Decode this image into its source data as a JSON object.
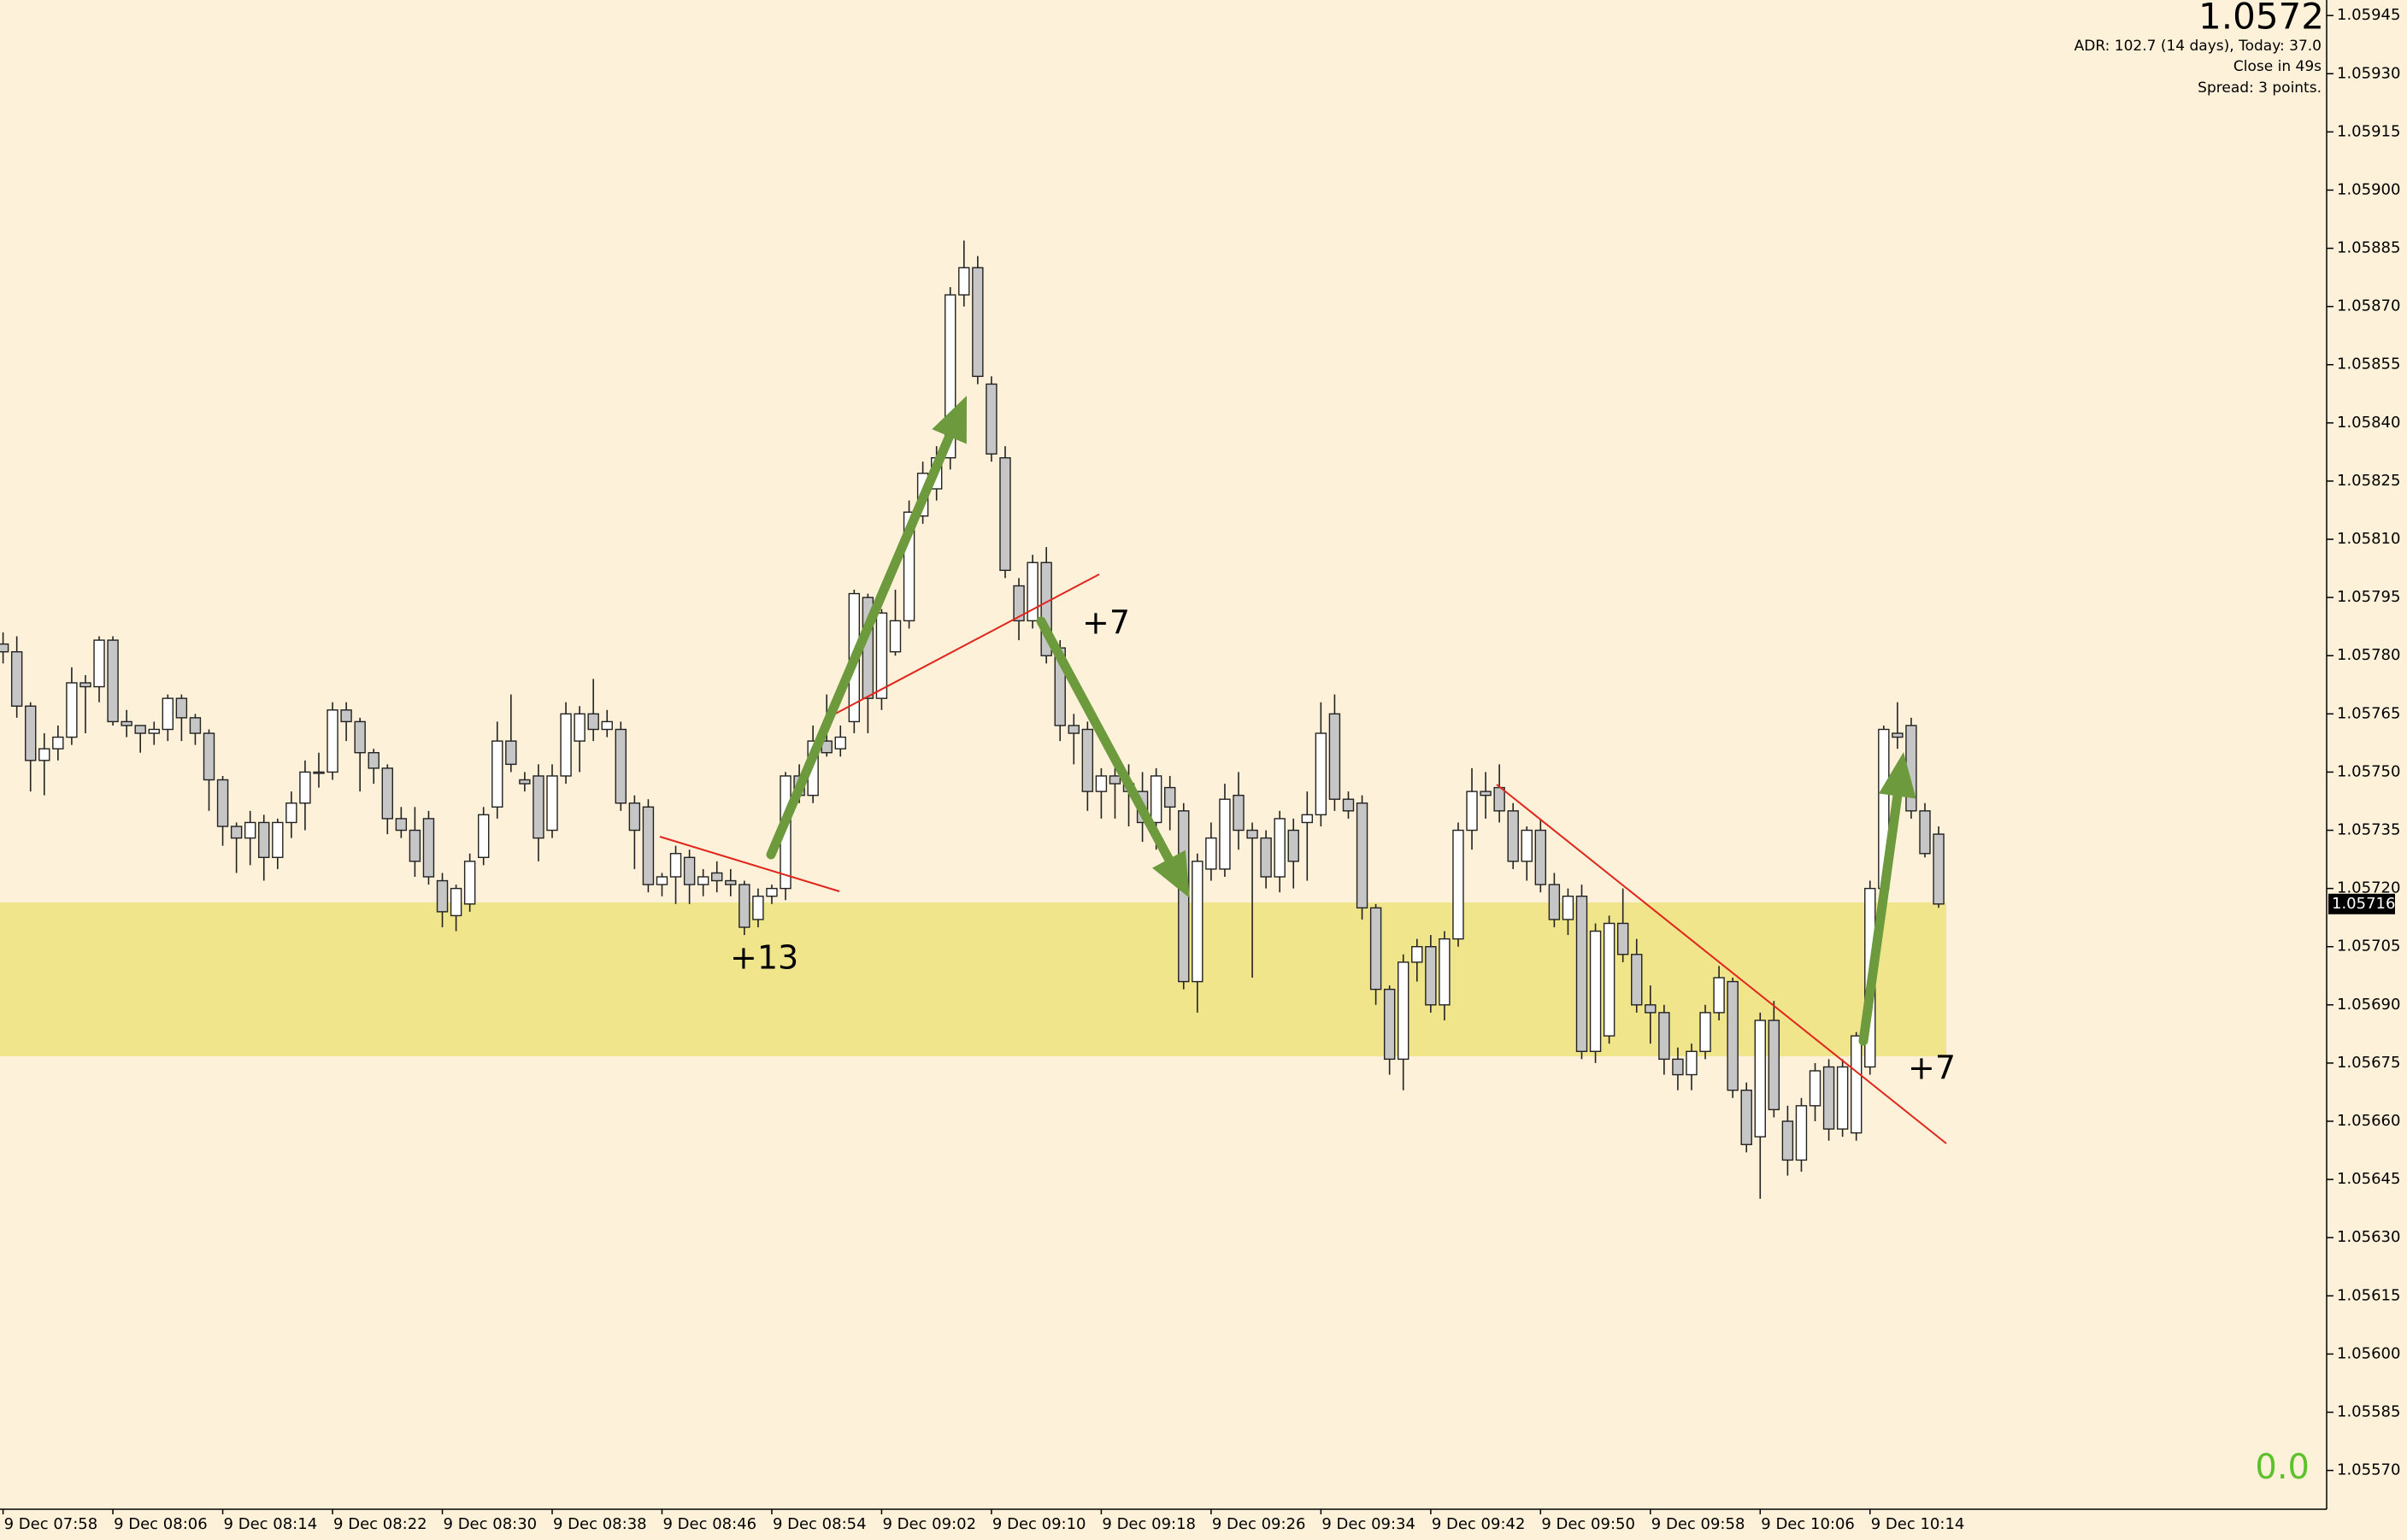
{
  "chart_data": {
    "type": "candlestick",
    "categories": [
      "9 Dec 07:58",
      null,
      null,
      null,
      null,
      null,
      null,
      null,
      "9 Dec 08:06",
      null,
      null,
      null,
      null,
      null,
      null,
      null,
      "9 Dec 08:14",
      null,
      null,
      null,
      null,
      null,
      null,
      null,
      "9 Dec 08:22",
      null,
      null,
      null,
      null,
      null,
      null,
      null,
      "9 Dec 08:30",
      null,
      null,
      null,
      null,
      null,
      null,
      null,
      "9 Dec 08:38",
      null,
      null,
      null,
      null,
      null,
      null,
      null,
      "9 Dec 08:46",
      null,
      null,
      null,
      null,
      null,
      null,
      null,
      "9 Dec 08:54",
      null,
      null,
      null,
      null,
      null,
      null,
      null,
      "9 Dec 09:02",
      null,
      null,
      null,
      null,
      null,
      null,
      null,
      "9 Dec 09:10",
      null,
      null,
      null,
      null,
      null,
      null,
      null,
      "9 Dec 09:18",
      null,
      null,
      null,
      null,
      null,
      null,
      null,
      "9 Dec 09:26",
      null,
      null,
      null,
      null,
      null,
      null,
      null,
      "9 Dec 09:34",
      null,
      null,
      null,
      null,
      null,
      null,
      null,
      "9 Dec 09:42",
      null,
      null,
      null,
      null,
      null,
      null,
      null,
      "9 Dec 09:50",
      null,
      null,
      null,
      null,
      null,
      null,
      null,
      "9 Dec 09:58",
      null,
      null,
      null,
      null,
      null,
      null,
      null,
      "9 Dec 10:06",
      null,
      null,
      null,
      null,
      null,
      null,
      null,
      "9 Dec 10:14",
      null,
      null,
      null,
      null,
      null
    ],
    "open": [
      1.05783,
      1.05781,
      1.05767,
      1.05753,
      1.05756,
      1.05759,
      1.05773,
      1.05772,
      1.05784,
      1.05763,
      1.05762,
      1.0576,
      1.05761,
      1.05769,
      1.05764,
      1.0576,
      1.05748,
      1.05736,
      1.05733,
      1.05737,
      1.05728,
      1.05737,
      1.05742,
      1.0575,
      1.0575,
      1.05766,
      1.05763,
      1.05755,
      1.05751,
      1.05738,
      1.05735,
      1.05738,
      1.05722,
      1.05713,
      1.05716,
      1.05728,
      1.05741,
      1.05758,
      1.05748,
      1.05749,
      1.05735,
      1.05749,
      1.05758,
      1.05765,
      1.05761,
      1.05761,
      1.05742,
      1.05741,
      1.05721,
      1.05723,
      1.05728,
      1.05721,
      1.05724,
      1.05722,
      1.05721,
      1.05712,
      1.05718,
      1.0572,
      1.05749,
      1.05744,
      1.05758,
      1.05756,
      1.05763,
      1.05795,
      1.05769,
      1.05781,
      1.05789,
      1.05816,
      1.05823,
      1.05831,
      1.05873,
      1.0588,
      1.0585,
      1.05831,
      1.05798,
      1.05789,
      1.05804,
      1.05782,
      1.05762,
      1.05761,
      1.05745,
      1.05749,
      1.05747,
      1.05745,
      1.05737,
      1.05746,
      1.0574,
      1.05696,
      1.05725,
      1.05725,
      1.05744,
      1.05735,
      1.05733,
      1.05723,
      1.05735,
      1.05737,
      1.05739,
      1.05765,
      1.05743,
      1.05742,
      1.05715,
      1.05694,
      1.05676,
      1.05701,
      1.05705,
      1.0569,
      1.05707,
      1.05735,
      1.05745,
      1.05746,
      1.0574,
      1.05727,
      1.05735,
      1.05721,
      1.05712,
      1.05718,
      1.05678,
      1.05682,
      1.05711,
      1.05703,
      1.0569,
      1.05688,
      1.05676,
      1.05672,
      1.05678,
      1.05688,
      1.05696,
      1.05668,
      1.05656,
      1.05686,
      1.0566,
      1.0565,
      1.05664,
      1.05674,
      1.05658,
      1.05657,
      1.05674,
      1.0572,
      1.0576,
      1.05762,
      1.0574,
      1.05734
    ],
    "high": [
      1.05786,
      1.05785,
      1.05768,
      1.0576,
      1.05762,
      1.05777,
      1.05775,
      1.05785,
      1.05785,
      1.05766,
      1.05762,
      1.05763,
      1.0577,
      1.0577,
      1.05765,
      1.05761,
      1.05749,
      1.05737,
      1.0574,
      1.05739,
      1.05738,
      1.05745,
      1.05753,
      1.05755,
      1.05768,
      1.05768,
      1.05764,
      1.05756,
      1.05752,
      1.05741,
      1.05741,
      1.0574,
      1.05724,
      1.05721,
      1.05729,
      1.05741,
      1.05763,
      1.0577,
      1.0575,
      1.05752,
      1.05752,
      1.05768,
      1.05767,
      1.05774,
      1.05766,
      1.05763,
      1.05744,
      1.05743,
      1.05724,
      1.05731,
      1.0573,
      1.05725,
      1.05727,
      1.05725,
      1.05722,
      1.0572,
      1.05721,
      1.0575,
      1.05752,
      1.05762,
      1.0577,
      1.05762,
      1.05797,
      1.05796,
      1.05792,
      1.05797,
      1.0582,
      1.0583,
      1.05834,
      1.05875,
      1.05887,
      1.05883,
      1.05852,
      1.05834,
      1.058,
      1.05806,
      1.05808,
      1.05784,
      1.05765,
      1.05763,
      1.05751,
      1.05752,
      1.05752,
      1.0575,
      1.05751,
      1.05749,
      1.05742,
      1.05729,
      1.05737,
      1.05747,
      1.0575,
      1.05737,
      1.05735,
      1.0574,
      1.05738,
      1.05745,
      1.05768,
      1.0577,
      1.05745,
      1.05744,
      1.05716,
      1.05695,
      1.05703,
      1.05707,
      1.05708,
      1.05709,
      1.05737,
      1.05751,
      1.0575,
      1.05752,
      1.05742,
      1.05736,
      1.05738,
      1.05724,
      1.0572,
      1.05721,
      1.05711,
      1.05713,
      1.0572,
      1.05707,
      1.05695,
      1.0569,
      1.05679,
      1.0568,
      1.0569,
      1.057,
      1.05697,
      1.0567,
      1.05688,
      1.05691,
      1.05664,
      1.05666,
      1.05675,
      1.05676,
      1.05676,
      1.05683,
      1.05722,
      1.05762,
      1.05768,
      1.05764,
      1.05742,
      1.05736
    ],
    "low": [
      1.05778,
      1.05764,
      1.05745,
      1.05744,
      1.05753,
      1.05757,
      1.0576,
      1.05768,
      1.05762,
      1.05759,
      1.05755,
      1.05757,
      1.05758,
      1.05758,
      1.05757,
      1.0574,
      1.05731,
      1.05724,
      1.05726,
      1.05722,
      1.05725,
      1.05733,
      1.05735,
      1.05746,
      1.05748,
      1.05758,
      1.05745,
      1.05747,
      1.05734,
      1.05733,
      1.05723,
      1.05721,
      1.0571,
      1.05709,
      1.05714,
      1.05726,
      1.05738,
      1.0575,
      1.05745,
      1.05727,
      1.05733,
      1.05747,
      1.0575,
      1.05758,
      1.05759,
      1.0574,
      1.05725,
      1.05719,
      1.05718,
      1.05716,
      1.05716,
      1.05718,
      1.05719,
      1.05718,
      1.05708,
      1.0571,
      1.05716,
      1.05717,
      1.05742,
      1.05742,
      1.05754,
      1.05754,
      1.0576,
      1.0576,
      1.05766,
      1.0578,
      1.05787,
      1.05814,
      1.0582,
      1.05828,
      1.0587,
      1.0585,
      1.0583,
      1.058,
      1.05784,
      1.05787,
      1.05778,
      1.05758,
      1.05752,
      1.0574,
      1.05738,
      1.05738,
      1.05736,
      1.05732,
      1.0573,
      1.05735,
      1.05694,
      1.05688,
      1.05722,
      1.05723,
      1.0573,
      1.05697,
      1.0572,
      1.05719,
      1.0572,
      1.05722,
      1.05736,
      1.0574,
      1.05738,
      1.05712,
      1.0569,
      1.05672,
      1.05668,
      1.05696,
      1.05688,
      1.05686,
      1.05705,
      1.0573,
      1.05738,
      1.05737,
      1.05725,
      1.05722,
      1.05719,
      1.0571,
      1.05708,
      1.05676,
      1.05675,
      1.0568,
      1.05701,
      1.05688,
      1.0568,
      1.05672,
      1.05668,
      1.05668,
      1.05676,
      1.05686,
      1.05666,
      1.05652,
      1.0564,
      1.05661,
      1.05646,
      1.05647,
      1.0566,
      1.05655,
      1.05656,
      1.05655,
      1.05672,
      1.05718,
      1.05756,
      1.05738,
      1.05728,
      1.05715
    ],
    "close": [
      1.05781,
      1.05767,
      1.05753,
      1.05756,
      1.05759,
      1.05773,
      1.05772,
      1.05784,
      1.05763,
      1.05762,
      1.0576,
      1.05761,
      1.05769,
      1.05764,
      1.0576,
      1.05748,
      1.05736,
      1.05733,
      1.05737,
      1.05728,
      1.05737,
      1.05742,
      1.0575,
      1.0575,
      1.05766,
      1.05763,
      1.05755,
      1.05751,
      1.05738,
      1.05735,
      1.05727,
      1.05723,
      1.05714,
      1.0572,
      1.05727,
      1.05739,
      1.05758,
      1.05752,
      1.05747,
      1.05733,
      1.05749,
      1.05765,
      1.05765,
      1.05761,
      1.05763,
      1.05742,
      1.05735,
      1.05721,
      1.05723,
      1.05729,
      1.05721,
      1.05723,
      1.05722,
      1.05721,
      1.0571,
      1.05718,
      1.0572,
      1.05749,
      1.05744,
      1.05758,
      1.05755,
      1.05759,
      1.05796,
      1.05769,
      1.05791,
      1.05789,
      1.05817,
      1.05827,
      1.05831,
      1.05873,
      1.0588,
      1.05852,
      1.05832,
      1.05802,
      1.05789,
      1.05804,
      1.0578,
      1.05762,
      1.0576,
      1.05745,
      1.05749,
      1.05747,
      1.05745,
      1.05737,
      1.05749,
      1.05741,
      1.05696,
      1.05727,
      1.05733,
      1.05743,
      1.05735,
      1.05733,
      1.05723,
      1.05738,
      1.05727,
      1.05739,
      1.0576,
      1.05743,
      1.0574,
      1.05715,
      1.05694,
      1.05676,
      1.05701,
      1.05705,
      1.0569,
      1.05707,
      1.05735,
      1.05745,
      1.05744,
      1.0574,
      1.05727,
      1.05735,
      1.05721,
      1.05712,
      1.05718,
      1.05678,
      1.05709,
      1.05711,
      1.05703,
      1.0569,
      1.05688,
      1.05676,
      1.05672,
      1.05678,
      1.05688,
      1.05697,
      1.05668,
      1.05654,
      1.05686,
      1.05663,
      1.0565,
      1.05664,
      1.05673,
      1.05658,
      1.05674,
      1.05682,
      1.0572,
      1.05761,
      1.05759,
      1.0574,
      1.05729,
      1.05716
    ],
    "up_color": "#ffffff",
    "down_color": "#c6c6c6",
    "ylim": [
      1.0556,
      1.05949
    ],
    "yticks": [
      1.05945,
      {
        "value": 1.0593,
        "label": "1.05930"
      },
      1.05915,
      {
        "value": 1.059,
        "label": "1.05900"
      },
      1.05885,
      {
        "value": 1.0587,
        "label": "1.05870"
      },
      1.05855,
      {
        "value": 1.0584,
        "label": "1.05840"
      },
      1.05825,
      {
        "value": 1.0581,
        "label": "1.05810"
      },
      1.05795,
      {
        "value": 1.0578,
        "label": "1.05780"
      },
      1.05765,
      {
        "value": 1.0575,
        "label": "1.05750"
      },
      1.05735,
      {
        "value": 1.0572,
        "label": "1.05720"
      },
      1.05705,
      {
        "value": 1.0569,
        "label": "1.05690"
      },
      1.05675,
      {
        "value": 1.0566,
        "label": "1.05660"
      },
      1.05645,
      {
        "value": 1.0563,
        "label": "1.05630"
      },
      1.05615,
      {
        "value": 1.056,
        "label": "1.05600"
      },
      1.05585,
      {
        "value": 1.0557,
        "label": "1.05570"
      }
    ],
    "grid": false,
    "price_tag": "1.05716",
    "info": {
      "price": "1.0572",
      "adr": "ADR: 102.7 (14 days), Today: 37.0",
      "close_in": "Close in 49s",
      "spread": "Spread: 3 points.",
      "corner_value": "0.0"
    },
    "annotations": [
      "+13",
      "+7",
      "+7"
    ]
  }
}
